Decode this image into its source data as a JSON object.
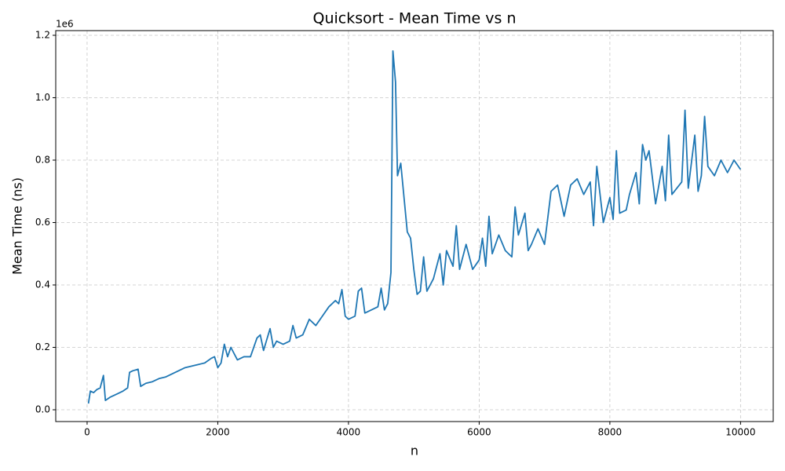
{
  "chart_data": {
    "type": "line",
    "title": "Quicksort - Mean Time vs n",
    "x_label": "n",
    "y_label": "Mean Time (ns)",
    "y_offset_label": "1e6",
    "x": [
      20,
      50,
      100,
      150,
      200,
      250,
      280,
      350,
      450,
      550,
      620,
      650,
      700,
      780,
      820,
      900,
      1000,
      1100,
      1200,
      1300,
      1400,
      1500,
      1600,
      1700,
      1800,
      1900,
      1950,
      2000,
      2050,
      2100,
      2150,
      2200,
      2300,
      2400,
      2500,
      2600,
      2650,
      2700,
      2800,
      2850,
      2900,
      3000,
      3100,
      3150,
      3200,
      3300,
      3400,
      3500,
      3600,
      3700,
      3800,
      3850,
      3900,
      3950,
      4000,
      4100,
      4150,
      4200,
      4250,
      4350,
      4450,
      4500,
      4550,
      4600,
      4650,
      4680,
      4720,
      4750,
      4800,
      4850,
      4900,
      4950,
      5000,
      5050,
      5100,
      5150,
      5200,
      5300,
      5400,
      5450,
      5500,
      5600,
      5650,
      5700,
      5800,
      5900,
      6000,
      6050,
      6100,
      6150,
      6200,
      6300,
      6400,
      6500,
      6550,
      6600,
      6700,
      6750,
      6800,
      6900,
      7000,
      7100,
      7200,
      7300,
      7400,
      7500,
      7600,
      7700,
      7750,
      7800,
      7900,
      8000,
      8050,
      8100,
      8150,
      8250,
      8300,
      8400,
      8450,
      8500,
      8550,
      8600,
      8700,
      8800,
      8850,
      8900,
      8950,
      9100,
      9150,
      9200,
      9300,
      9350,
      9400,
      9450,
      9500,
      9600,
      9700,
      9800,
      9900,
      10000
    ],
    "series": [
      {
        "name": "Mean Time",
        "color": "#1f77b4",
        "values": [
          0.02,
          0.06,
          0.055,
          0.065,
          0.07,
          0.11,
          0.03,
          0.04,
          0.05,
          0.06,
          0.07,
          0.12,
          0.125,
          0.13,
          0.075,
          0.085,
          0.09,
          0.1,
          0.105,
          0.115,
          0.125,
          0.135,
          0.14,
          0.145,
          0.15,
          0.165,
          0.17,
          0.135,
          0.15,
          0.21,
          0.17,
          0.2,
          0.16,
          0.17,
          0.17,
          0.23,
          0.24,
          0.19,
          0.26,
          0.2,
          0.22,
          0.21,
          0.22,
          0.27,
          0.23,
          0.24,
          0.29,
          0.27,
          0.3,
          0.33,
          0.35,
          0.34,
          0.385,
          0.3,
          0.29,
          0.3,
          0.38,
          0.39,
          0.31,
          0.32,
          0.33,
          0.39,
          0.32,
          0.34,
          0.44,
          1.15,
          1.05,
          0.75,
          0.79,
          0.68,
          0.57,
          0.55,
          0.45,
          0.37,
          0.38,
          0.49,
          0.38,
          0.42,
          0.5,
          0.4,
          0.51,
          0.46,
          0.59,
          0.45,
          0.53,
          0.45,
          0.48,
          0.55,
          0.46,
          0.62,
          0.5,
          0.56,
          0.51,
          0.49,
          0.65,
          0.56,
          0.63,
          0.51,
          0.53,
          0.58,
          0.53,
          0.7,
          0.72,
          0.62,
          0.72,
          0.74,
          0.69,
          0.73,
          0.59,
          0.78,
          0.6,
          0.68,
          0.61,
          0.83,
          0.63,
          0.64,
          0.69,
          0.76,
          0.66,
          0.85,
          0.8,
          0.83,
          0.66,
          0.78,
          0.67,
          0.88,
          0.69,
          0.73,
          0.96,
          0.71,
          0.88,
          0.7,
          0.75,
          0.94,
          0.78,
          0.75,
          0.8,
          0.76,
          0.8,
          0.77
        ]
      }
    ],
    "xlim": [
      -480,
      10500
    ],
    "ylim": [
      -0.0377,
      1.215
    ],
    "xticks": [
      0,
      2000,
      4000,
      6000,
      8000,
      10000
    ],
    "yticks": [
      {
        "value": 0,
        "label": "0.0"
      },
      0.2,
      0.4,
      0.6,
      0.8,
      {
        "value": 1,
        "label": "1.0"
      },
      1.2
    ],
    "grid": true
  }
}
